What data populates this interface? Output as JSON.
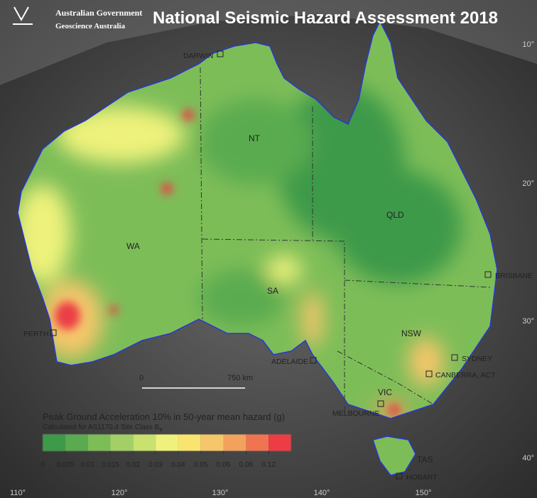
{
  "header": {
    "org_line1": "Australian Government",
    "org_line2": "Geoscience Australia",
    "title": "National Seismic Hazard Assessment 2018"
  },
  "places": [
    {
      "label": "DARWIN"
    },
    {
      "label": "NT"
    },
    {
      "label": "WA"
    },
    {
      "label": "QLD"
    },
    {
      "label": "SA"
    },
    {
      "label": "NSW"
    },
    {
      "label": "PERTH"
    },
    {
      "label": "ADELAIDE"
    },
    {
      "label": "SYDNEY"
    },
    {
      "label": "CANBERRA, ACT"
    },
    {
      "label": "VIC"
    },
    {
      "label": "MELBOURNE"
    },
    {
      "label": "TAS"
    },
    {
      "label": "HOBART"
    },
    {
      "label": "BRISBANE"
    }
  ],
  "scale_bar": {
    "start": "0",
    "end": "750 km"
  },
  "legend": {
    "title": "Peak Ground Acceleration 10% in 50-year mean hazard (g)",
    "subtitle": "Calculated for AS1170.4 Site Class B",
    "subtitle_sub": "e",
    "colors": [
      "#3e9a48",
      "#5aab4f",
      "#7dbd58",
      "#a3d066",
      "#c8e16f",
      "#eef27c",
      "#f9e46f",
      "#f6c66a",
      "#f3a25e",
      "#f07452",
      "#ec3d45"
    ],
    "ticks": [
      0,
      0.005,
      0.01,
      0.015,
      0.02,
      0.03,
      0.04,
      0.05,
      0.06,
      0.08,
      0.12
    ]
  },
  "graticule": {
    "lon": [
      "110°",
      "120°",
      "130°",
      "140°",
      "150°"
    ],
    "lat": [
      "10°",
      "20°",
      "30°",
      "40°"
    ]
  }
}
